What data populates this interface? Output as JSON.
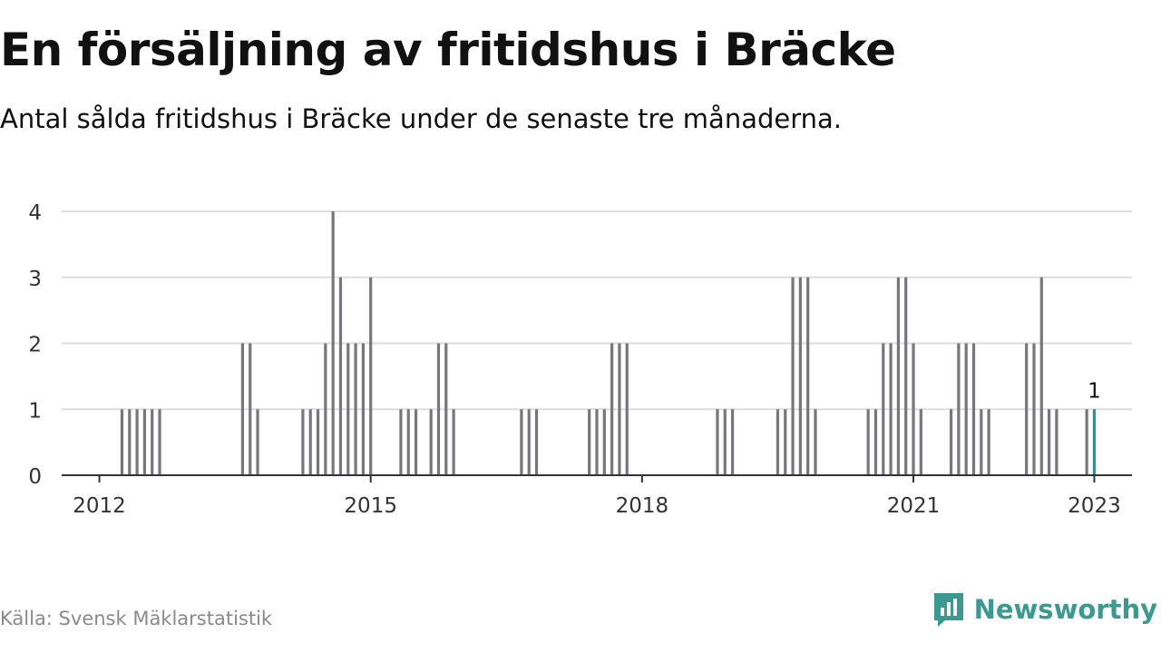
{
  "header": {
    "title": "En försäljning av fritidshus i Bräcke",
    "subtitle": "Antal sålda fritidshus i Bräcke under de senaste tre månaderna."
  },
  "footer": {
    "source": "Källa: Svensk Mäklarstatistik",
    "brand": "Newsworthy",
    "brand_icon": "newsworthy-logo-icon"
  },
  "colors": {
    "bar": "#77767c",
    "highlight": "#18a094",
    "grid": "#dddddd",
    "axis": "#333333",
    "brand": "#3a9a8f"
  },
  "chart_data": {
    "type": "bar",
    "title": "En försäljning av fritidshus i Bräcke",
    "xlabel": "",
    "ylabel": "",
    "ylim": [
      0,
      4
    ],
    "yticks": [
      "0",
      "1",
      "2",
      "3",
      "4"
    ],
    "xticks": [
      {
        "label": "2012",
        "x": "2012-01"
      },
      {
        "label": "2015",
        "x": "2015-01"
      },
      {
        "label": "2018",
        "x": "2018-01"
      },
      {
        "label": "2021",
        "x": "2021-01"
      },
      {
        "label": "2023",
        "x": "2023-01"
      }
    ],
    "x_range": [
      "2011-08",
      "2023-06"
    ],
    "grid": true,
    "highlight": {
      "x": "2023-01",
      "value": 1,
      "label": "1"
    },
    "x": [
      "2012-04",
      "2012-05",
      "2012-06",
      "2012-07",
      "2012-08",
      "2012-09",
      "2013-08",
      "2013-09",
      "2013-10",
      "2014-04",
      "2014-05",
      "2014-06",
      "2014-07",
      "2014-08",
      "2014-09",
      "2014-10",
      "2014-11",
      "2014-12",
      "2015-01",
      "2015-05",
      "2015-06",
      "2015-07",
      "2015-09",
      "2015-10",
      "2015-11",
      "2015-12",
      "2016-09",
      "2016-10",
      "2016-11",
      "2017-06",
      "2017-07",
      "2017-08",
      "2017-09",
      "2017-10",
      "2017-11",
      "2018-11",
      "2018-12",
      "2019-01",
      "2019-07",
      "2019-08",
      "2019-09",
      "2019-10",
      "2019-11",
      "2019-12",
      "2020-07",
      "2020-08",
      "2020-09",
      "2020-10",
      "2020-11",
      "2020-12",
      "2021-01",
      "2021-02",
      "2021-06",
      "2021-07",
      "2021-08",
      "2021-09",
      "2021-10",
      "2021-11",
      "2022-04",
      "2022-05",
      "2022-06",
      "2022-07",
      "2022-08",
      "2022-12",
      "2023-01"
    ],
    "values": [
      1,
      1,
      1,
      1,
      1,
      1,
      2,
      2,
      1,
      1,
      1,
      1,
      2,
      4,
      3,
      2,
      2,
      2,
      3,
      1,
      1,
      1,
      1,
      2,
      2,
      1,
      1,
      1,
      1,
      1,
      1,
      1,
      2,
      2,
      2,
      1,
      1,
      1,
      1,
      1,
      3,
      3,
      3,
      1,
      1,
      1,
      2,
      2,
      3,
      3,
      2,
      1,
      1,
      2,
      2,
      2,
      1,
      1,
      2,
      2,
      3,
      1,
      1,
      1,
      1
    ]
  }
}
